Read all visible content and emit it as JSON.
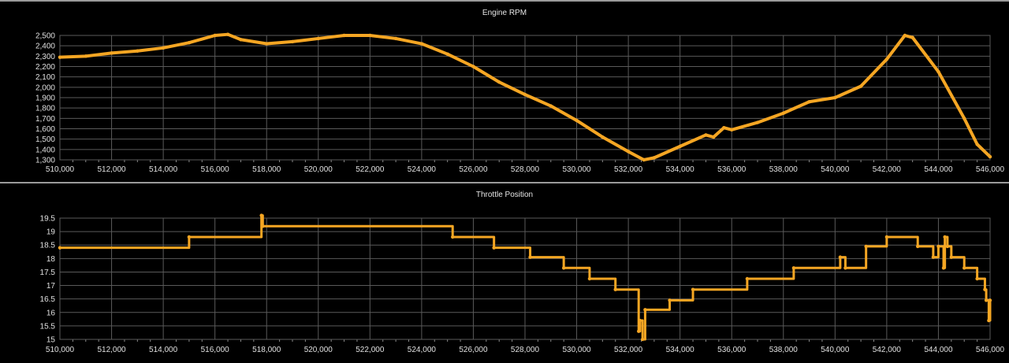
{
  "charts": [
    {
      "id": "rpm",
      "chart_data": {
        "type": "line",
        "title": "Engine RPM",
        "xlabel": "",
        "ylabel": "",
        "xlim": [
          510000,
          546000
        ],
        "ylim": [
          1300,
          2500
        ],
        "xticks": [
          "510,000",
          "512,000",
          "514,000",
          "516,000",
          "518,000",
          "520,000",
          "522,000",
          "524,000",
          "526,000",
          "528,000",
          "530,000",
          "532,000",
          "534,000",
          "536,000",
          "538,000",
          "540,000",
          "542,000",
          "544,000",
          "546,000"
        ],
        "yticks": [
          "2,500",
          "2,400",
          "2,300",
          "2,200",
          "2,100",
          "2,000",
          "1,900",
          "1,800",
          "1,700",
          "1,600",
          "1,500",
          "1,400",
          "1,300"
        ],
        "grid": true,
        "color": "#f5a623",
        "series": [
          {
            "x": [
              510000,
              511000,
              512000,
              513000,
              514000,
              515000,
              516000,
              516500,
              517000,
              518000,
              519000,
              520000,
              521000,
              522000,
              523000,
              524000,
              525000,
              526000,
              527000,
              528000,
              529000,
              530000,
              531000,
              532000,
              532600,
              533000,
              534000,
              535000,
              535300,
              535700,
              536000,
              537000,
              538000,
              539000,
              540000,
              541000,
              542000,
              542700,
              543000,
              544000,
              545000,
              545500,
              546000
            ],
            "values": [
              2290,
              2300,
              2330,
              2350,
              2380,
              2430,
              2500,
              2510,
              2460,
              2420,
              2440,
              2470,
              2500,
              2500,
              2470,
              2420,
              2320,
              2200,
              2050,
              1930,
              1820,
              1680,
              1520,
              1380,
              1300,
              1320,
              1430,
              1540,
              1520,
              1610,
              1590,
              1660,
              1750,
              1860,
              1900,
              2010,
              2270,
              2500,
              2480,
              2150,
              1700,
              1450,
              1330
            ]
          }
        ]
      }
    },
    {
      "id": "throttle",
      "chart_data": {
        "type": "line",
        "title": "Throttle Position",
        "xlabel": "",
        "ylabel": "",
        "xlim": [
          510000,
          546000
        ],
        "ylim": [
          15,
          19.5
        ],
        "xticks": [
          "510,000",
          "512,000",
          "514,000",
          "516,000",
          "518,000",
          "520,000",
          "522,000",
          "524,000",
          "526,000",
          "528,000",
          "530,000",
          "532,000",
          "534,000",
          "536,000",
          "538,000",
          "540,000",
          "542,000",
          "544,000",
          "546,000"
        ],
        "yticks": [
          "19.5",
          "19",
          "18.5",
          "18",
          "17.5",
          "17",
          "16.5",
          "16",
          "15.5",
          "15"
        ],
        "grid": true,
        "color": "#f5a623",
        "step": true,
        "series": [
          {
            "x": [
              510000,
              515000,
              517800,
              517850,
              525200,
              526800,
              528200,
              529500,
              530500,
              531500,
              532400,
              532450,
              532550,
              532650,
              533600,
              534500,
              536600,
              538400,
              540200,
              540400,
              541200,
              542000,
              543200,
              543800,
              544000,
              544200,
              544250,
              544350,
              544500,
              545000,
              545500,
              545800,
              545850,
              545950,
              546000
            ],
            "values": [
              18.4,
              18.8,
              19.6,
              19.2,
              18.8,
              18.4,
              18.05,
              17.65,
              17.25,
              16.85,
              15.3,
              15.7,
              15.0,
              16.1,
              16.45,
              16.85,
              17.25,
              17.65,
              18.05,
              17.65,
              18.45,
              18.8,
              18.45,
              18.05,
              18.45,
              17.65,
              18.8,
              18.45,
              18.05,
              17.65,
              17.25,
              16.85,
              16.45,
              15.7,
              16.45
            ]
          }
        ]
      }
    }
  ]
}
